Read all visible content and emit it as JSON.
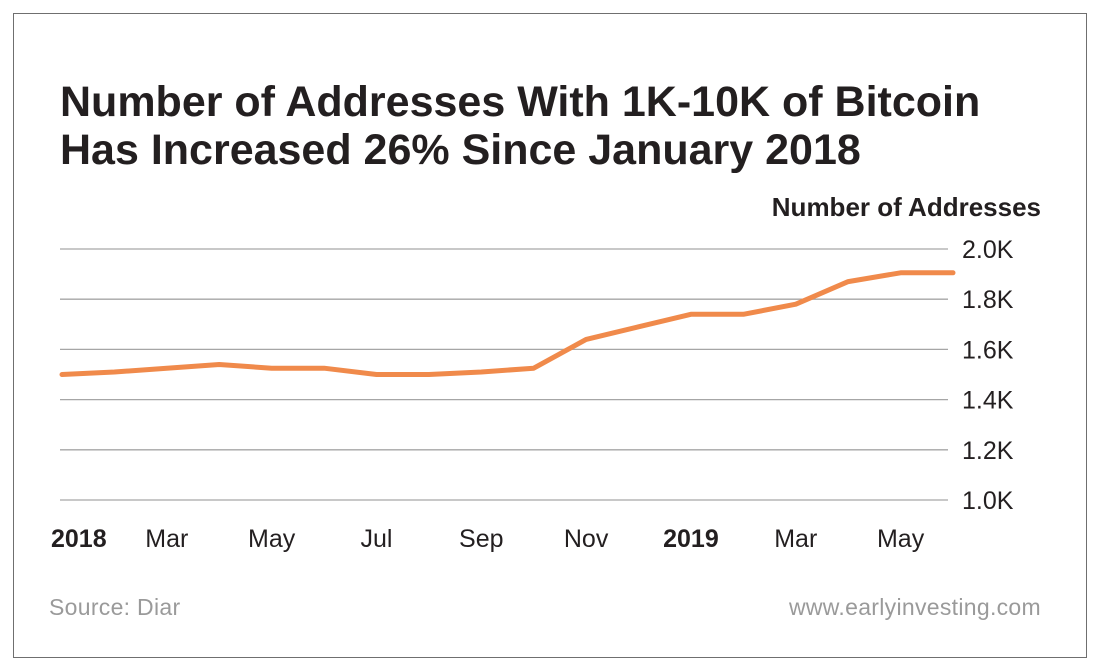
{
  "title_lines": [
    "Number of Addresses With 1K-10K of Bitcoin",
    "Has Increased 26% Since January 2018"
  ],
  "source": "Source: Diar",
  "website": "www.earlyinvesting.com",
  "colors": {
    "line": "#f08a4b",
    "grid": "#a6a6a6",
    "text": "#231f20",
    "muted": "#9a9a9a"
  },
  "chart_data": {
    "type": "line",
    "title": "Number of Addresses With 1K-10K of Bitcoin Has Increased 26% Since January 2018",
    "xlabel": "",
    "ylabel": "Number of Addresses",
    "ylim": [
      1000,
      2000
    ],
    "y_ticks": [
      {
        "value": 2000,
        "label": "2.0K"
      },
      {
        "value": 1800,
        "label": "1.8K"
      },
      {
        "value": 1600,
        "label": "1.6K"
      },
      {
        "value": 1400,
        "label": "1.4K"
      },
      {
        "value": 1200,
        "label": "1.2K"
      },
      {
        "value": 1000,
        "label": "1.0K"
      }
    ],
    "x_ticks": [
      {
        "label": "2018",
        "bold": true,
        "x": 0
      },
      {
        "label": "Mar",
        "bold": false,
        "x": 2
      },
      {
        "label": "May",
        "bold": false,
        "x": 4
      },
      {
        "label": "Jul",
        "bold": false,
        "x": 6
      },
      {
        "label": "Sep",
        "bold": false,
        "x": 8
      },
      {
        "label": "Nov",
        "bold": false,
        "x": 10
      },
      {
        "label": "2019",
        "bold": true,
        "x": 12
      },
      {
        "label": "Mar",
        "bold": false,
        "x": 14
      },
      {
        "label": "May",
        "bold": false,
        "x": 16
      }
    ],
    "xlim": [
      0,
      17
    ],
    "grid": true,
    "series": [
      {
        "x": [
          0,
          1,
          2,
          3,
          4,
          5,
          6,
          7,
          8,
          9,
          10,
          11,
          12,
          13,
          14,
          15,
          16,
          17
        ],
        "values": [
          1500,
          1510,
          1525,
          1540,
          1525,
          1525,
          1500,
          1500,
          1510,
          1525,
          1640,
          1690,
          1740,
          1740,
          1780,
          1870,
          1905,
          1905
        ]
      }
    ]
  }
}
